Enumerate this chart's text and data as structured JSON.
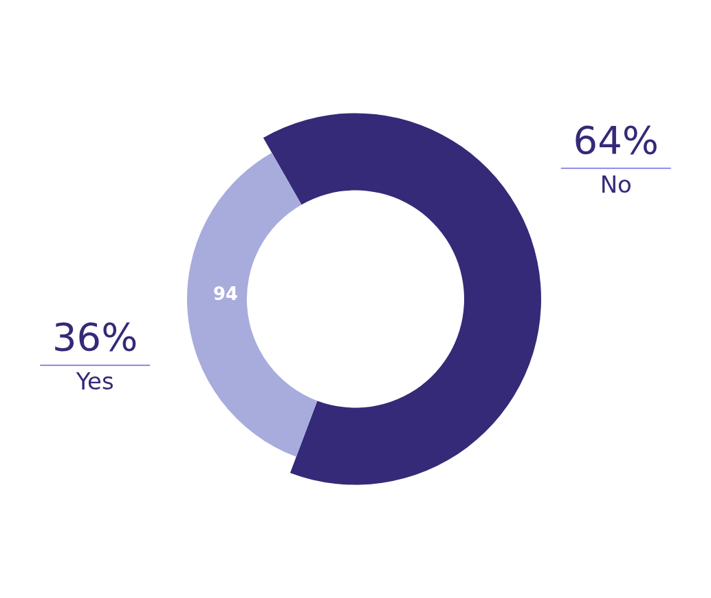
{
  "chart_data": {
    "type": "donut",
    "categories": [
      "No",
      "Yes"
    ],
    "values": [
      64,
      36
    ],
    "colors": [
      "#342a78",
      "#a8acdc"
    ],
    "value_labels": [
      "64%",
      "36%"
    ],
    "annotations": [
      "94"
    ]
  }
}
